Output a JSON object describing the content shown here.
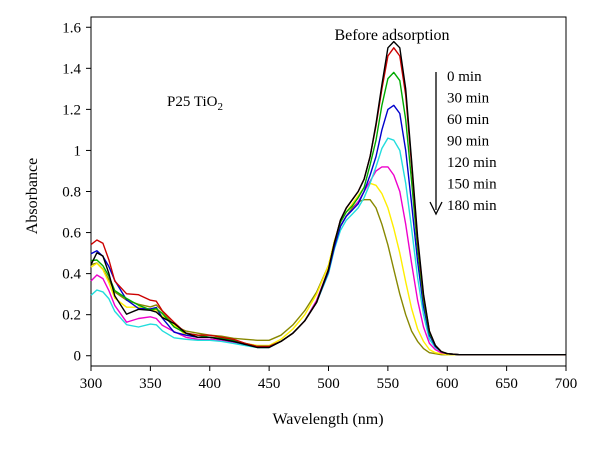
{
  "chart_data": {
    "type": "line",
    "xlabel": "Wavelength (nm)",
    "ylabel": "Absorbance",
    "xlim": [
      300,
      700
    ],
    "ylim": [
      -0.05,
      1.65
    ],
    "x_ticks": [
      300,
      350,
      400,
      450,
      500,
      550,
      600,
      650,
      700
    ],
    "y_ticks": [
      {
        "v": 0,
        "label": "0"
      },
      {
        "v": 0.2,
        "label": "0.2"
      },
      {
        "v": 0.4,
        "label": "0.4"
      },
      {
        "v": 0.6,
        "label": "0.6"
      },
      {
        "v": 0.8,
        "label": "0.8"
      },
      {
        "v": 1.0,
        "label": "1"
      },
      {
        "v": 1.2,
        "label": "1.2"
      },
      {
        "v": 1.4,
        "label": "1.4"
      },
      {
        "v": 1.6,
        "label": "1.6"
      }
    ],
    "grid": false,
    "annotations": {
      "top_label": "Before adsorption",
      "sample_label": "P25 TiO",
      "sample_sub": "2"
    },
    "legend_labels": [
      "0 min",
      "30 min",
      "60 min",
      "90 min",
      "120 min",
      "150 min",
      "180 min"
    ],
    "x": [
      300,
      305,
      310,
      315,
      320,
      330,
      340,
      350,
      355,
      360,
      370,
      380,
      390,
      400,
      410,
      420,
      430,
      440,
      450,
      460,
      470,
      480,
      490,
      500,
      505,
      510,
      515,
      520,
      525,
      530,
      535,
      540,
      545,
      550,
      555,
      560,
      565,
      570,
      575,
      580,
      585,
      590,
      595,
      600,
      610,
      620,
      650,
      700
    ],
    "series": [
      {
        "color": "#000000",
        "values": [
          0.45,
          0.5,
          0.48,
          0.4,
          0.3,
          0.22,
          0.22,
          0.21,
          0.21,
          0.19,
          0.15,
          0.11,
          0.09,
          0.09,
          0.08,
          0.07,
          0.055,
          0.04,
          0.04,
          0.07,
          0.11,
          0.17,
          0.26,
          0.42,
          0.55,
          0.66,
          0.72,
          0.76,
          0.8,
          0.86,
          0.97,
          1.13,
          1.32,
          1.5,
          1.53,
          1.5,
          1.3,
          0.95,
          0.58,
          0.3,
          0.12,
          0.05,
          0.02,
          0.01,
          0.005,
          0.005,
          0.005,
          0.005
        ]
      },
      {
        "color": "#cc0000",
        "values": [
          0.54,
          0.56,
          0.55,
          0.48,
          0.38,
          0.3,
          0.28,
          0.27,
          0.27,
          0.22,
          0.15,
          0.11,
          0.1,
          0.1,
          0.09,
          0.08,
          0.06,
          0.045,
          0.045,
          0.07,
          0.11,
          0.17,
          0.26,
          0.42,
          0.55,
          0.66,
          0.72,
          0.76,
          0.8,
          0.86,
          0.97,
          1.12,
          1.3,
          1.46,
          1.5,
          1.46,
          1.27,
          0.93,
          0.56,
          0.29,
          0.12,
          0.05,
          0.02,
          0.01,
          0.005,
          0.005,
          0.005,
          0.005
        ]
      },
      {
        "color": "#00aa00",
        "values": [
          0.46,
          0.47,
          0.45,
          0.4,
          0.32,
          0.26,
          0.24,
          0.23,
          0.23,
          0.2,
          0.14,
          0.11,
          0.1,
          0.09,
          0.085,
          0.075,
          0.06,
          0.045,
          0.045,
          0.07,
          0.11,
          0.17,
          0.26,
          0.42,
          0.55,
          0.65,
          0.7,
          0.73,
          0.77,
          0.82,
          0.93,
          1.05,
          1.22,
          1.35,
          1.38,
          1.34,
          1.15,
          0.85,
          0.52,
          0.27,
          0.11,
          0.05,
          0.02,
          0.01,
          0.005,
          0.005,
          0.005,
          0.005
        ]
      },
      {
        "color": "#0000cc",
        "values": [
          0.5,
          0.52,
          0.49,
          0.43,
          0.35,
          0.26,
          0.24,
          0.23,
          0.23,
          0.18,
          0.13,
          0.1,
          0.09,
          0.09,
          0.08,
          0.07,
          0.055,
          0.045,
          0.045,
          0.07,
          0.11,
          0.17,
          0.26,
          0.41,
          0.53,
          0.63,
          0.68,
          0.71,
          0.74,
          0.8,
          0.88,
          0.97,
          1.1,
          1.2,
          1.22,
          1.18,
          1.0,
          0.74,
          0.46,
          0.24,
          0.1,
          0.045,
          0.02,
          0.01,
          0.005,
          0.005,
          0.005,
          0.005
        ]
      },
      {
        "color": "#22dddd",
        "values": [
          0.3,
          0.32,
          0.3,
          0.26,
          0.2,
          0.16,
          0.15,
          0.15,
          0.15,
          0.13,
          0.1,
          0.08,
          0.075,
          0.075,
          0.07,
          0.06,
          0.05,
          0.04,
          0.04,
          0.07,
          0.11,
          0.17,
          0.26,
          0.4,
          0.52,
          0.61,
          0.66,
          0.69,
          0.72,
          0.77,
          0.84,
          0.92,
          1.01,
          1.06,
          1.05,
          1.0,
          0.84,
          0.62,
          0.38,
          0.2,
          0.08,
          0.04,
          0.02,
          0.01,
          0.005,
          0.005,
          0.005,
          0.005
        ]
      },
      {
        "color": "#ee00cc",
        "values": [
          0.36,
          0.38,
          0.36,
          0.31,
          0.25,
          0.18,
          0.18,
          0.19,
          0.19,
          0.16,
          0.11,
          0.09,
          0.08,
          0.08,
          0.075,
          0.065,
          0.055,
          0.045,
          0.045,
          0.07,
          0.11,
          0.17,
          0.27,
          0.42,
          0.54,
          0.63,
          0.68,
          0.71,
          0.75,
          0.8,
          0.85,
          0.9,
          0.92,
          0.92,
          0.88,
          0.8,
          0.64,
          0.45,
          0.27,
          0.14,
          0.06,
          0.03,
          0.015,
          0.01,
          0.005,
          0.005,
          0.005,
          0.005
        ]
      },
      {
        "color": "#ffee00",
        "values": [
          0.42,
          0.44,
          0.42,
          0.37,
          0.3,
          0.24,
          0.23,
          0.23,
          0.23,
          0.19,
          0.13,
          0.1,
          0.09,
          0.09,
          0.085,
          0.075,
          0.06,
          0.05,
          0.05,
          0.08,
          0.13,
          0.2,
          0.3,
          0.44,
          0.56,
          0.65,
          0.7,
          0.74,
          0.78,
          0.82,
          0.84,
          0.83,
          0.79,
          0.72,
          0.62,
          0.5,
          0.36,
          0.23,
          0.13,
          0.07,
          0.03,
          0.015,
          0.01,
          0.005,
          0.005,
          0.005,
          0.005,
          0.005
        ]
      },
      {
        "color": "#888800",
        "values": [
          0.44,
          0.46,
          0.44,
          0.39,
          0.32,
          0.26,
          0.25,
          0.24,
          0.24,
          0.2,
          0.14,
          0.12,
          0.11,
          0.1,
          0.095,
          0.085,
          0.08,
          0.075,
          0.075,
          0.1,
          0.15,
          0.22,
          0.31,
          0.44,
          0.55,
          0.63,
          0.68,
          0.72,
          0.75,
          0.76,
          0.76,
          0.72,
          0.64,
          0.54,
          0.42,
          0.3,
          0.2,
          0.12,
          0.07,
          0.035,
          0.015,
          0.01,
          0.005,
          0.005,
          0.005,
          0.005,
          0.005,
          0.005
        ]
      }
    ]
  }
}
